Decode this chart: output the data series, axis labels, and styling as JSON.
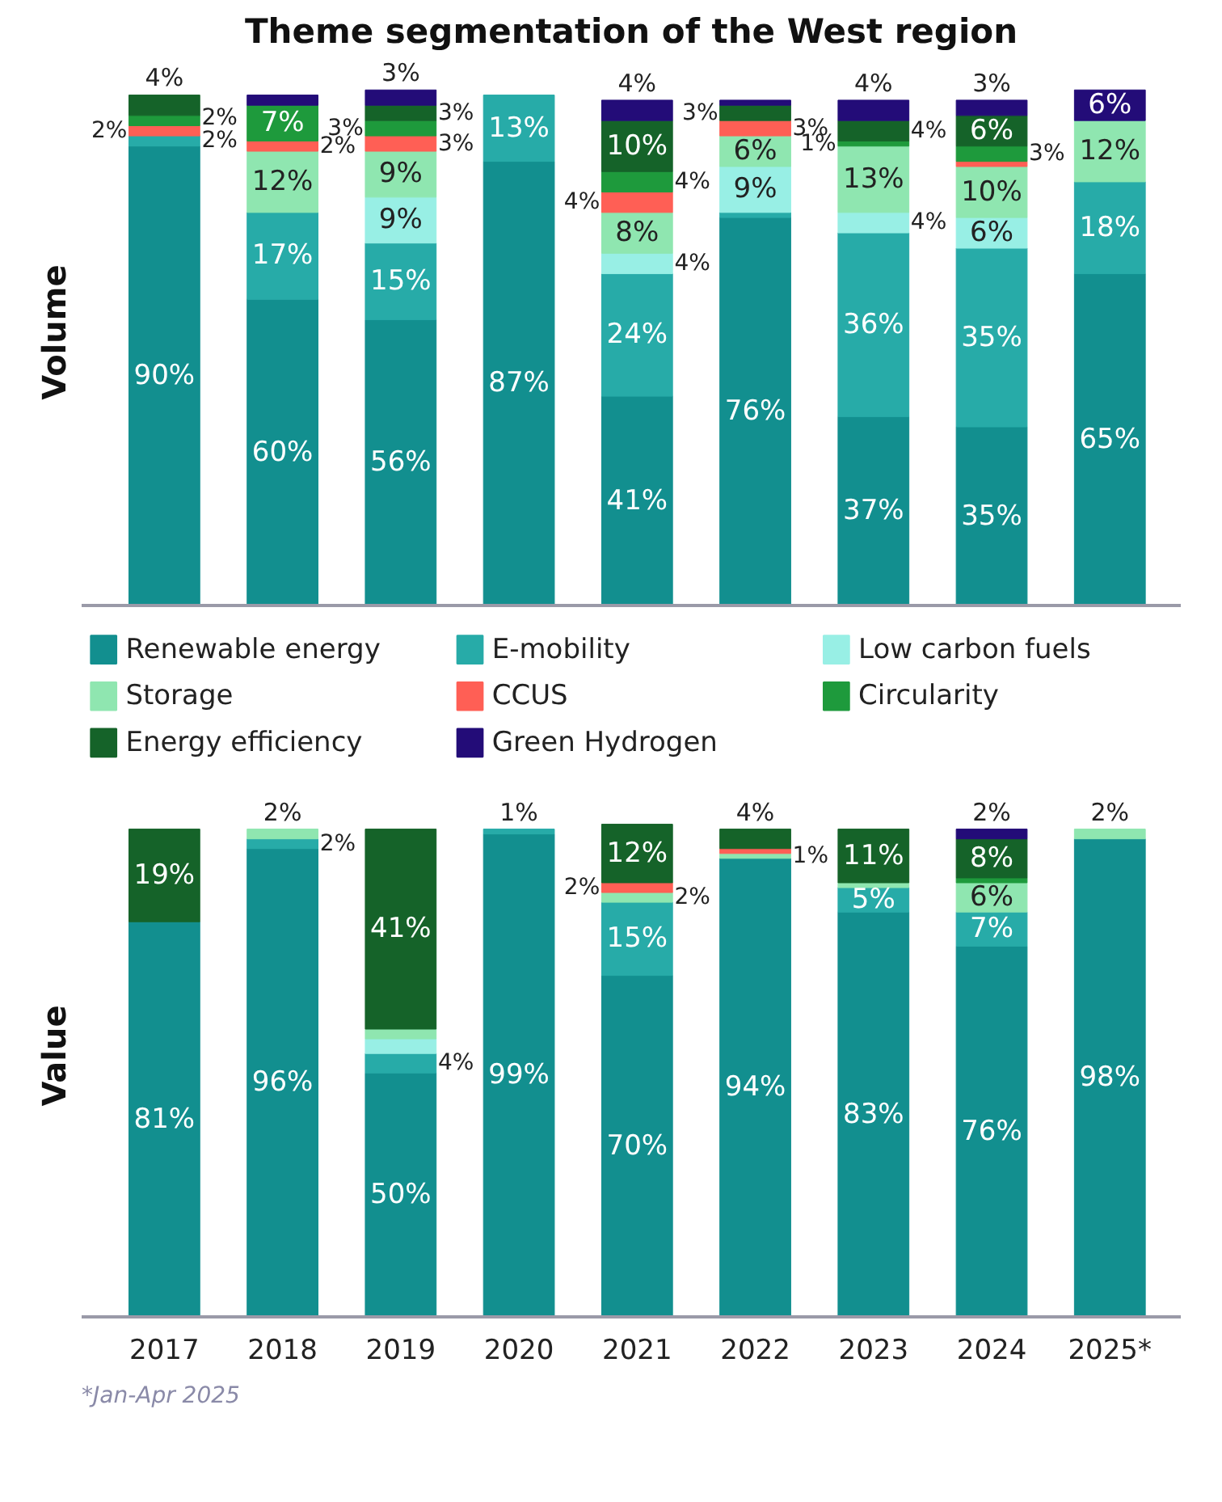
{
  "chart_data": [
    {
      "type": "bar",
      "stacked": true,
      "title": "Theme segmentation of the West region",
      "ylabel": "Volume",
      "legend": "bottom",
      "tick_labels": false,
      "categories": [
        null,
        null,
        null,
        null,
        null,
        null,
        null,
        null,
        null
      ],
      "series": [
        {
          "name": "Renewable energy",
          "color": "#128f8f",
          "values": [
            90,
            60,
            56,
            87,
            41,
            76,
            37,
            35,
            65
          ],
          "value_labels": [
            "90%",
            "60%",
            "56%",
            "87%",
            "41%",
            "76%",
            "37%",
            "35%",
            "65%"
          ]
        },
        {
          "name": "E-mobility",
          "color": "#27aba8",
          "values": [
            2,
            17,
            15,
            13,
            24,
            1,
            36,
            35,
            18
          ],
          "value_labels": [
            "2%",
            "17%",
            "15%",
            "13%",
            "24%",
            null,
            "36%",
            "35%",
            "18%"
          ]
        },
        {
          "name": "Low carbon fuels",
          "color": "#98efe5",
          "values": [
            null,
            null,
            9,
            null,
            4,
            9,
            4,
            6,
            null
          ],
          "value_labels": [
            null,
            null,
            "9%",
            null,
            "4%",
            "9%",
            "4%",
            "6%",
            null
          ]
        },
        {
          "name": "Storage",
          "color": "#8fe6b0",
          "values": [
            null,
            12,
            9,
            null,
            8,
            6,
            13,
            10,
            12
          ],
          "value_labels": [
            null,
            "12%",
            "9%",
            null,
            "8%",
            "6%",
            "13%",
            "10%",
            "12%"
          ]
        },
        {
          "name": "CCUS",
          "color": "#ff5f55",
          "values": [
            2,
            2,
            3,
            null,
            4,
            3,
            null,
            1,
            null
          ],
          "value_labels": [
            "2%",
            "2%",
            "3%",
            null,
            "4%",
            "3%",
            null,
            null,
            null
          ]
        },
        {
          "name": "Circularity",
          "color": "#1e9a3c",
          "values": [
            2,
            7,
            3,
            null,
            4,
            null,
            1,
            3,
            null
          ],
          "value_labels": [
            "2%",
            "7%",
            "3%",
            null,
            "4%",
            null,
            "1%",
            "3%",
            null
          ]
        },
        {
          "name": "Energy efficiency",
          "color": "#156329",
          "values": [
            4,
            null,
            3,
            null,
            10,
            3,
            4,
            6,
            null
          ],
          "value_labels": [
            "4%",
            null,
            "3%",
            null,
            "10%",
            "3%",
            "4%",
            "6%",
            null
          ]
        },
        {
          "name": "Green Hydrogen",
          "color": "#230c78",
          "values": [
            null,
            2,
            3,
            null,
            4,
            1,
            4,
            3,
            6
          ],
          "value_labels": [
            null,
            null,
            "3%",
            null,
            "4%",
            null,
            "4%",
            "3%",
            "6%"
          ]
        }
      ]
    },
    {
      "type": "bar",
      "stacked": true,
      "ylabel": "Value",
      "tick_labels": "x",
      "annotations": [
        "*Jan-Apr 2025"
      ],
      "categories": [
        "2017",
        "2018",
        "2019",
        "2020",
        "2021",
        "2022",
        "2023",
        "2024",
        "2025*"
      ],
      "series": [
        {
          "color": "#128f8f",
          "values": [
            81,
            96,
            50,
            99,
            70,
            94,
            83,
            76,
            98
          ],
          "value_labels": [
            "81%",
            "96%",
            "50%",
            "99%",
            "70%",
            "94%",
            "83%",
            "76%",
            "98%"
          ]
        },
        {
          "color": "#27aba8",
          "values": [
            null,
            2,
            4,
            1,
            15,
            null,
            5,
            7,
            null
          ],
          "value_labels": [
            null,
            "2%",
            "4%",
            "1%",
            "15%",
            null,
            "5%",
            "7%",
            null
          ]
        },
        {
          "color": "#98efe5",
          "values": [
            null,
            null,
            3,
            null,
            null,
            null,
            null,
            null,
            null
          ],
          "value_labels": [
            null,
            null,
            null,
            null,
            null,
            null,
            null,
            null,
            null
          ]
        },
        {
          "color": "#8fe6b0",
          "values": [
            null,
            2,
            2,
            null,
            2,
            1,
            1,
            6,
            2
          ],
          "value_labels": [
            null,
            "2%",
            null,
            null,
            "2%",
            "1%",
            null,
            "6%",
            "2%"
          ]
        },
        {
          "color": "#ff5f55",
          "values": [
            null,
            null,
            null,
            null,
            2,
            1,
            null,
            null,
            null
          ],
          "value_labels": [
            null,
            null,
            null,
            null,
            "2%",
            null,
            null,
            null,
            null
          ]
        },
        {
          "color": "#1e9a3c",
          "values": [
            null,
            null,
            null,
            null,
            null,
            null,
            null,
            1,
            null
          ],
          "value_labels": [
            null,
            null,
            null,
            null,
            null,
            null,
            null,
            null,
            null
          ]
        },
        {
          "color": "#156329",
          "values": [
            19,
            null,
            41,
            null,
            12,
            4,
            11,
            8,
            null
          ],
          "value_labels": [
            "19%",
            null,
            "41%",
            null,
            "12%",
            "4%",
            "11%",
            "8%",
            null
          ]
        },
        {
          "color": "#230c78",
          "values": [
            null,
            null,
            null,
            null,
            null,
            null,
            null,
            2,
            null
          ],
          "value_labels": [
            null,
            null,
            null,
            null,
            null,
            null,
            null,
            "2%",
            null
          ]
        }
      ]
    }
  ]
}
